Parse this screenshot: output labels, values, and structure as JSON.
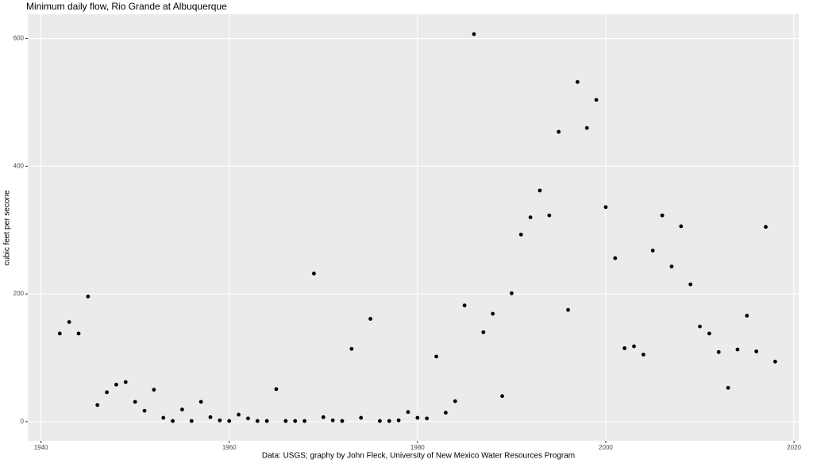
{
  "chart_data": {
    "type": "scatter",
    "title": "Minimum daily flow, Rio Grande at Albuquerque",
    "x_label": "Data: USGS; graphy by John Fleck, University of New Mexico Water Resources Program",
    "y_label": "cubic feet per secone",
    "x": [
      1942,
      1943,
      1944,
      1945,
      1946,
      1947,
      1948,
      1949,
      1950,
      1951,
      1952,
      1953,
      1954,
      1955,
      1956,
      1957,
      1958,
      1959,
      1960,
      1961,
      1962,
      1963,
      1964,
      1965,
      1966,
      1967,
      1968,
      1969,
      1970,
      1971,
      1972,
      1973,
      1974,
      1975,
      1976,
      1977,
      1978,
      1979,
      1980,
      1981,
      1982,
      1983,
      1984,
      1985,
      1986,
      1987,
      1988,
      1989,
      1990,
      1991,
      1992,
      1993,
      1994,
      1995,
      1996,
      1997,
      1998,
      1999,
      2000,
      2001,
      2002,
      2003,
      2004,
      2005,
      2006,
      2007,
      2008,
      2009,
      2010,
      2011,
      2012,
      2013,
      2014,
      2015,
      2016,
      2017,
      2018
    ],
    "values": [
      138,
      156,
      138,
      196,
      26,
      46,
      58,
      62,
      31,
      17,
      50,
      6,
      1,
      19,
      1,
      31,
      7,
      2,
      1,
      11,
      5,
      1,
      1,
      51,
      1,
      1,
      1,
      232,
      7,
      2,
      1,
      114,
      6,
      161,
      1,
      1,
      2,
      15,
      6,
      5,
      102,
      14,
      32,
      182,
      607,
      140,
      169,
      40,
      201,
      293,
      320,
      362,
      323,
      454,
      175,
      532,
      460,
      504,
      336,
      256,
      115,
      118,
      105,
      268,
      323,
      243,
      306,
      215,
      149,
      138,
      109,
      53,
      113,
      166,
      110,
      305,
      94
    ],
    "color": "#000000",
    "xlim": [
      1938.6,
      2020.5
    ],
    "ylim": [
      -30,
      638
    ],
    "xticks": [
      1940,
      1960,
      1980,
      2000,
      2020
    ],
    "yticks": [
      0,
      200,
      400,
      600
    ],
    "grid": true
  }
}
